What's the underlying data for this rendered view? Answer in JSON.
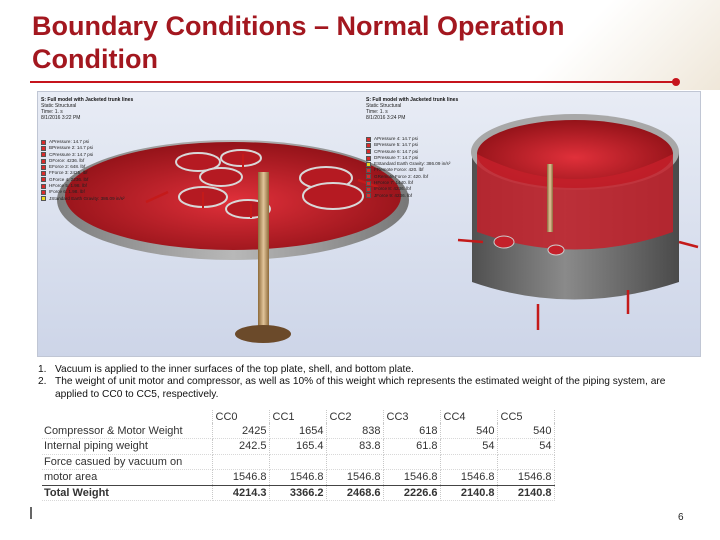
{
  "slide": {
    "title": "Boundary Conditions – Normal Operation Condition",
    "page_number": "6",
    "accent_color": "#c6141c"
  },
  "left_model": {
    "heading": "S: Full model with Jacketed trunk lines",
    "analysis": "Static Structural",
    "time": "Time: 1. s",
    "date": "8/1/2016 3:22 PM",
    "loads": [
      {
        "key": "A",
        "label": "Pressure: 14.7 psi",
        "color": "#d92b2b"
      },
      {
        "key": "B",
        "label": "Pressure 2: 14.7 psi",
        "color": "#d92b2b"
      },
      {
        "key": "C",
        "label": "Pressure 3: 14.7 psi",
        "color": "#d92b2b"
      },
      {
        "key": "D",
        "label": "Force: 4236. lbf",
        "color": "#d92b2b"
      },
      {
        "key": "E",
        "label": "Force 2: 648. lbf",
        "color": "#d92b2b"
      },
      {
        "key": "F",
        "label": "Force 3: 2425. lbf",
        "color": "#d92b2b"
      },
      {
        "key": "G",
        "label": "Force 4: 2236. lbf",
        "color": "#d92b2b"
      },
      {
        "key": "H",
        "label": "Force 5: 1.98. lbf",
        "color": "#d92b2b"
      },
      {
        "key": "I",
        "label": "Force 6: 1.98. lbf",
        "color": "#d92b2b"
      },
      {
        "key": "J",
        "label": "Standard Earth Gravity: 386.09 in/s²",
        "color": "#e8d820"
      }
    ]
  },
  "right_model": {
    "heading": "S: Full model with Jacketed trunk lines",
    "analysis": "Static Structural",
    "time": "Time: 1. s",
    "date": "8/1/2016 3:24 PM",
    "loads": [
      {
        "key": "A",
        "label": "Pressure 4: 14.7 psi",
        "color": "#d92b2b"
      },
      {
        "key": "B",
        "label": "Pressure 5: 14.7 psi",
        "color": "#d92b2b"
      },
      {
        "key": "C",
        "label": "Pressure 6: 14.7 psi",
        "color": "#d92b2b"
      },
      {
        "key": "D",
        "label": "Pressure 7: 14.7 psi",
        "color": "#d92b2b"
      },
      {
        "key": "E",
        "label": "Standard Earth Gravity: 386.09 in/s²",
        "color": "#e8d820"
      },
      {
        "key": "F",
        "label": "Remote Force: 420. lbf",
        "color": "#d92b2b"
      },
      {
        "key": "G",
        "label": "Remote Force 2: 420. lbf",
        "color": "#d92b2b"
      },
      {
        "key": "H",
        "label": "Force 7: 1440. lbf",
        "color": "#d92b2b"
      },
      {
        "key": "I",
        "label": "Force 8: 4236. lbf",
        "color": "#d92b2b"
      },
      {
        "key": "J",
        "label": "Force 9: 4236. lbf",
        "color": "#d92b2b"
      }
    ]
  },
  "notes": [
    {
      "num": "1.",
      "text": "Vacuum is applied to the inner surfaces of the top plate, shell, and bottom plate."
    },
    {
      "num": "2.",
      "text": "The weight of unit motor and compressor, as well as 10% of this weight which represents the estimated weight of the piping system, are applied to CC0 to CC5, respectively."
    }
  ],
  "table": {
    "columns": [
      "CC0",
      "CC1",
      "CC2",
      "CC3",
      "CC4",
      "CC5"
    ],
    "rows": [
      {
        "label": "Compressor & Motor Weight",
        "values": [
          "2425",
          "1654",
          "838",
          "618",
          "540",
          "540"
        ]
      },
      {
        "label": "Internal piping weight",
        "values": [
          "242.5",
          "165.4",
          "83.8",
          "61.8",
          "54",
          "54"
        ]
      },
      {
        "label": "Force casued by vacuum on",
        "values": [
          "",
          "",
          "",
          "",
          "",
          ""
        ]
      },
      {
        "label": "motor area",
        "values": [
          "1546.8",
          "1546.8",
          "1546.8",
          "1546.8",
          "1546.8",
          "1546.8"
        ]
      }
    ],
    "total": {
      "label": "Total Weight",
      "values": [
        "4214.3",
        "3366.2",
        "2468.6",
        "2226.6",
        "2140.8",
        "2140.8"
      ]
    }
  }
}
